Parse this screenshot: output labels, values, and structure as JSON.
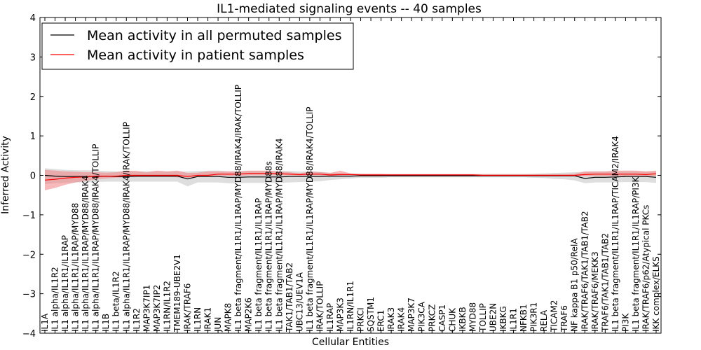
{
  "chart_data": {
    "type": "line",
    "title": "IL1-mediated signaling events -- 40 samples",
    "xlabel": "Cellular Entities",
    "ylabel": "Inferred Activity",
    "ylim": [
      -4,
      4
    ],
    "yticks": [
      -4,
      -3,
      -2,
      -1,
      0,
      1,
      2,
      3,
      4
    ],
    "ytick_labels": [
      "−4",
      "−3",
      "−2",
      "−1",
      "0",
      "1",
      "2",
      "3",
      "4"
    ],
    "grid": false,
    "legend_position": "top-left",
    "colors": {
      "permuted": "#000000",
      "patient": "#ff0000",
      "permuted_band": "#c8c8c8",
      "patient_band": "#f08080"
    },
    "categories": [
      "IL1A",
      "IL1 alpha/IL1R2",
      "IL1 alpha/IL1R1/IL1RAP",
      "IL1 alpha/IL1R1/IL1RAP/MYD88",
      "IL1 alpha/IL1R1/IL1RAP/MYD88/IRAK4",
      "IL1 alpha/IL1R1/IL1RAP/MYD88/IRAK4/TOLLIP",
      "IL1B",
      "IL1 beta/IL1R2",
      "IL1 alpha/IL1R1/IL1RAP/MYD88/IRAK4/IRAK/TOLLIP",
      "IL1R2",
      "MAP3K7IP1",
      "MAP3K7IP2",
      "IL1RN/IL1R2",
      "TMEM189-UBE2V1",
      "IRAK/TRAF6",
      "IL1RN",
      "IRAK1",
      "JUN",
      "MAPK8",
      "IL1 beta fragment/IL1R1/IL1RAP/MYD88/IRAK4/IRAK/TOLLIP",
      "MAP2K6",
      "IL1 beta fragment/IL1R1/IL1RAP",
      "IL1 beta fragment/IL1R1/IL1RAP/MYD88s",
      "IL1 beta fragment/IL1R1/IL1RAP/MYD88/IRAK4",
      "TAK1/TAB1/TAB2",
      "UBC13/UEV1A",
      "IL1 beta fragment/IL1R1/IL1RAP/MYD88/IRAK4/TOLLIP",
      "IRAK/TOLLIP",
      "IL1RAP",
      "MAP3K3",
      "IL1RN/IL1R1",
      "PRKCI",
      "SQSTM1",
      "ERC1",
      "IRAK3",
      "IRAK4",
      "MAP3K7",
      "PIK3CA",
      "PRKCZ",
      "CASP1",
      "CHUK",
      "IKBKB",
      "MYD88",
      "TOLLIP",
      "UBE2N",
      "IKBKG",
      "IL1R1",
      "NFKB1",
      "PIK3R1",
      "RELA",
      "TICAM2",
      "TRAF6",
      "NF kappa B1 p50/RelA",
      "IRAK/TRAF6/TAK1/TAB1/TAB2",
      "IRAK/TRAF6/MEKK3",
      "TRAF6/TAK1/TAB1/TAB2",
      "IL1 beta fragment/IL1R1/IL1RAP/TICAM2/IRAK4",
      "PI3K",
      "IL1 beta fragment/IL1R1/IL1RAP/PI3K",
      "IRAK/TRAF6/p62/Atypical PKCs",
      "IKK complex/ELKS"
    ],
    "series": [
      {
        "name": "Mean activity in all permuted samples",
        "values": [
          0.0,
          -0.02,
          -0.03,
          -0.03,
          -0.03,
          -0.03,
          -0.02,
          -0.03,
          -0.03,
          -0.02,
          -0.02,
          -0.02,
          -0.02,
          -0.02,
          -0.09,
          -0.03,
          -0.03,
          -0.03,
          -0.05,
          -0.05,
          -0.04,
          -0.04,
          -0.04,
          -0.04,
          -0.03,
          -0.03,
          -0.03,
          -0.03,
          -0.02,
          -0.02,
          -0.02,
          -0.01,
          -0.01,
          -0.01,
          -0.01,
          -0.01,
          -0.01,
          -0.01,
          -0.01,
          -0.01,
          -0.01,
          -0.01,
          -0.01,
          -0.01,
          -0.01,
          -0.01,
          -0.01,
          -0.01,
          -0.01,
          -0.01,
          -0.01,
          -0.01,
          -0.01,
          -0.08,
          -0.05,
          -0.05,
          -0.04,
          -0.03,
          -0.03,
          -0.03,
          -0.05
        ],
        "lower": [
          -0.22,
          -0.2,
          -0.19,
          -0.18,
          -0.18,
          -0.17,
          -0.16,
          -0.16,
          -0.16,
          -0.16,
          -0.16,
          -0.16,
          -0.16,
          -0.16,
          -0.28,
          -0.18,
          -0.18,
          -0.18,
          -0.2,
          -0.2,
          -0.19,
          -0.19,
          -0.19,
          -0.19,
          -0.18,
          -0.17,
          -0.16,
          -0.15,
          -0.12,
          -0.1,
          -0.08,
          -0.06,
          -0.06,
          -0.06,
          -0.05,
          -0.05,
          -0.05,
          -0.05,
          -0.05,
          -0.05,
          -0.05,
          -0.05,
          -0.05,
          -0.05,
          -0.05,
          -0.05,
          -0.05,
          -0.05,
          -0.06,
          -0.07,
          -0.09,
          -0.1,
          -0.13,
          -0.2,
          -0.18,
          -0.18,
          -0.18,
          -0.17,
          -0.17,
          -0.17,
          -0.19
        ],
        "upper": [
          0.18,
          0.16,
          0.14,
          0.13,
          0.13,
          0.12,
          0.11,
          0.1,
          0.1,
          0.1,
          0.1,
          0.1,
          0.1,
          0.1,
          0.1,
          0.11,
          0.12,
          0.12,
          0.1,
          0.1,
          0.11,
          0.11,
          0.11,
          0.11,
          0.11,
          0.1,
          0.1,
          0.09,
          0.07,
          0.06,
          0.05,
          0.04,
          0.03,
          0.03,
          0.03,
          0.03,
          0.03,
          0.03,
          0.03,
          0.03,
          0.03,
          0.03,
          0.03,
          0.03,
          0.03,
          0.03,
          0.03,
          0.03,
          0.04,
          0.05,
          0.06,
          0.07,
          0.08,
          0.09,
          0.1,
          0.1,
          0.1,
          0.1,
          0.1,
          0.1,
          0.1
        ]
      },
      {
        "name": "Mean activity in patient samples",
        "values": [
          -0.12,
          -0.1,
          -0.07,
          -0.05,
          -0.04,
          -0.02,
          -0.02,
          -0.02,
          0.0,
          0.0,
          0.0,
          0.0,
          0.0,
          0.0,
          -0.03,
          0.0,
          0.0,
          0.03,
          0.03,
          0.03,
          0.05,
          0.05,
          0.05,
          0.04,
          0.03,
          0.02,
          0.03,
          0.03,
          0.01,
          0.02,
          0.02,
          0.01,
          0.01,
          0.01,
          0.01,
          0.01,
          0.01,
          0.01,
          0.01,
          0.01,
          0.01,
          0.01,
          0.01,
          0.0,
          0.0,
          0.0,
          0.0,
          0.0,
          0.0,
          0.0,
          0.0,
          0.0,
          0.0,
          0.02,
          0.03,
          0.03,
          0.03,
          0.03,
          0.03,
          0.02,
          0.04
        ],
        "lower": [
          -0.38,
          -0.32,
          -0.24,
          -0.18,
          -0.14,
          -0.1,
          -0.08,
          -0.06,
          -0.05,
          -0.04,
          -0.04,
          -0.04,
          -0.04,
          -0.05,
          -0.06,
          -0.04,
          -0.03,
          -0.01,
          -0.01,
          -0.01,
          0.0,
          0.0,
          0.0,
          0.0,
          0.0,
          -0.01,
          0.0,
          0.0,
          -0.01,
          0.0,
          0.0,
          0.0,
          0.0,
          0.0,
          0.0,
          0.0,
          0.0,
          0.0,
          0.0,
          0.0,
          0.0,
          0.0,
          0.0,
          -0.01,
          -0.01,
          -0.01,
          -0.01,
          -0.01,
          -0.01,
          -0.01,
          -0.01,
          -0.01,
          -0.01,
          -0.02,
          -0.02,
          -0.02,
          -0.02,
          -0.02,
          -0.02,
          -0.02,
          -0.02
        ],
        "upper": [
          0.14,
          0.12,
          0.1,
          0.09,
          0.08,
          0.08,
          0.07,
          0.08,
          0.12,
          0.11,
          0.08,
          0.12,
          0.1,
          0.12,
          0.06,
          0.07,
          0.1,
          0.1,
          0.1,
          0.1,
          0.12,
          0.12,
          0.12,
          0.1,
          0.08,
          0.05,
          0.1,
          0.08,
          0.06,
          0.12,
          0.05,
          0.04,
          0.04,
          0.04,
          0.03,
          0.03,
          0.03,
          0.03,
          0.03,
          0.03,
          0.03,
          0.03,
          0.03,
          0.03,
          0.03,
          0.03,
          0.03,
          0.03,
          0.03,
          0.03,
          0.03,
          0.03,
          0.04,
          0.1,
          0.1,
          0.1,
          0.12,
          0.12,
          0.12,
          0.1,
          0.12
        ]
      }
    ]
  }
}
